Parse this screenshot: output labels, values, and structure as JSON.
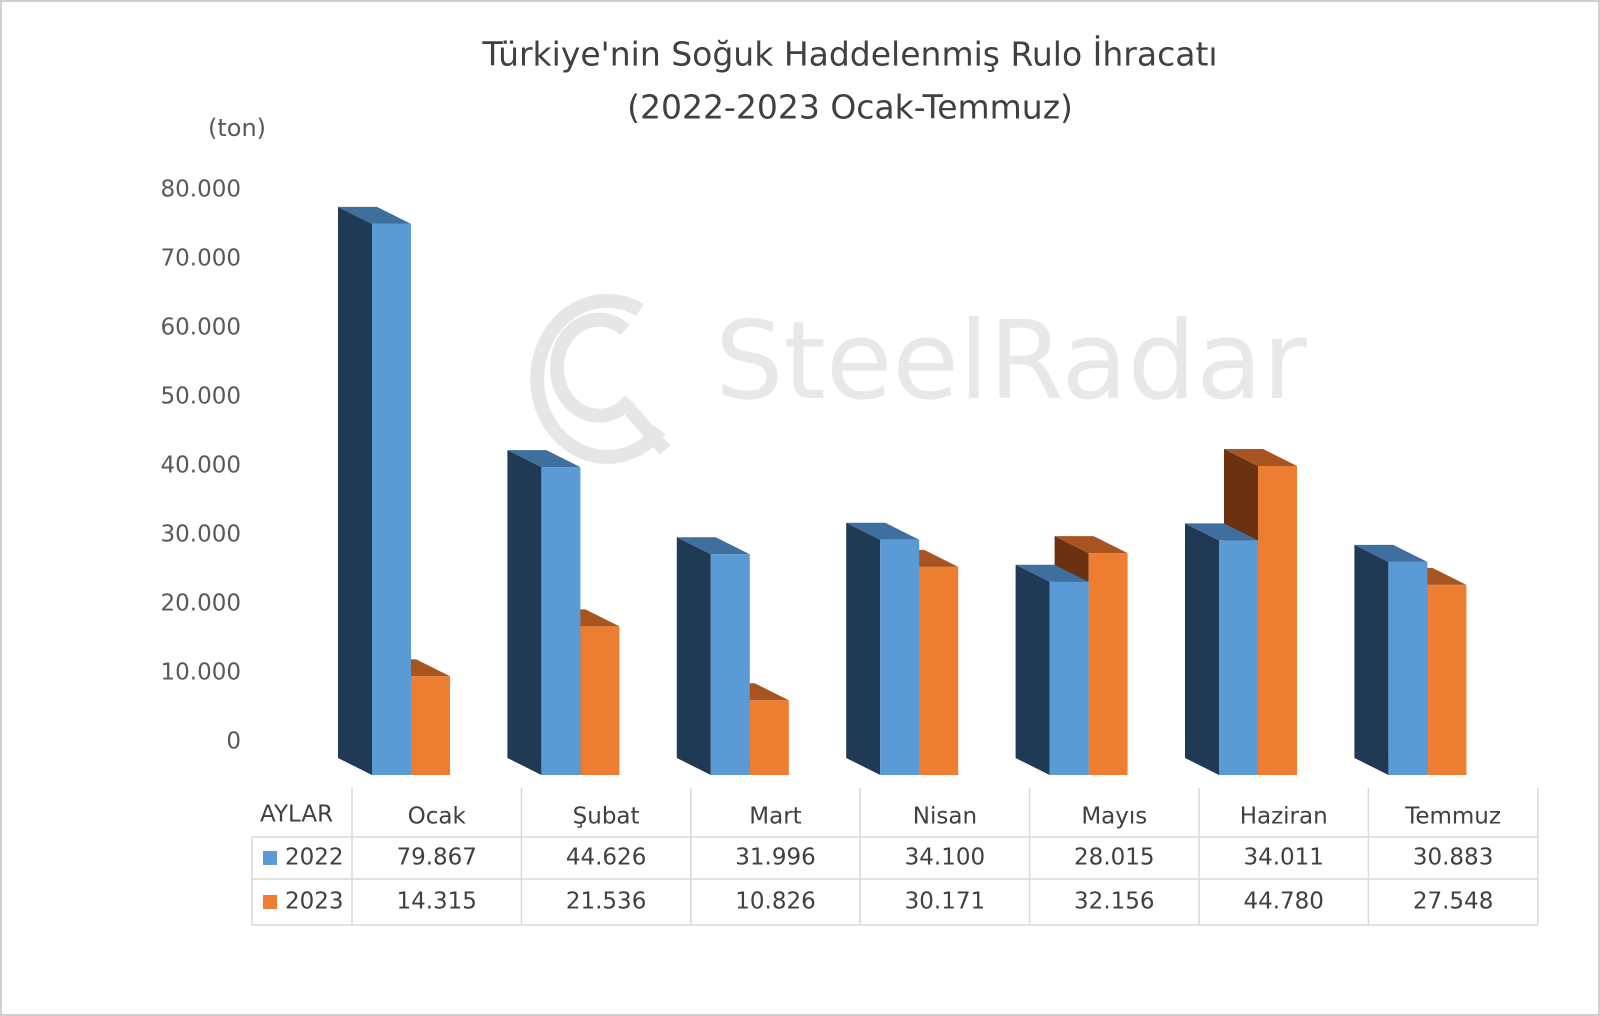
{
  "chart_data": {
    "type": "bar",
    "title": "Türkiye'nin Soğuk Haddelenmiş Rulo İhracatı",
    "subtitle": "(2022-2023 Ocak-Temmuz)",
    "y_label": "(ton)",
    "table_header": "AYLAR",
    "watermark": "SteelRadar",
    "categories": [
      "Ocak",
      "Şubat",
      "Mart",
      "Nisan",
      "Mayıs",
      "Haziran",
      "Temmuz"
    ],
    "series": [
      {
        "name": "2022",
        "color": "#5b9bd5",
        "values": [
          79867,
          44626,
          31996,
          34100,
          28015,
          34011,
          30883
        ],
        "value_labels": [
          "79.867",
          "44.626",
          "31.996",
          "34.100",
          "28.015",
          "34.011",
          "30.883"
        ]
      },
      {
        "name": "2023",
        "color": "#ed7d31",
        "values": [
          14315,
          21536,
          10826,
          30171,
          32156,
          44780,
          27548
        ],
        "value_labels": [
          "14.315",
          "21.536",
          "10.826",
          "30.171",
          "32.156",
          "44.780",
          "27.548"
        ]
      }
    ],
    "ylim": [
      0,
      80000
    ],
    "yticks": [
      0,
      {
        "value": 10000,
        "label": "10.000"
      },
      {
        "value": 20000,
        "label": "20.000"
      },
      {
        "value": 30000,
        "label": "30.000"
      },
      {
        "value": 40000,
        "label": "40.000"
      },
      {
        "value": 50000,
        "label": "50.000"
      },
      {
        "value": 60000,
        "label": "60.000"
      },
      {
        "value": 70000,
        "label": "70.000"
      },
      {
        "value": 80000,
        "label": "80.000"
      }
    ]
  }
}
